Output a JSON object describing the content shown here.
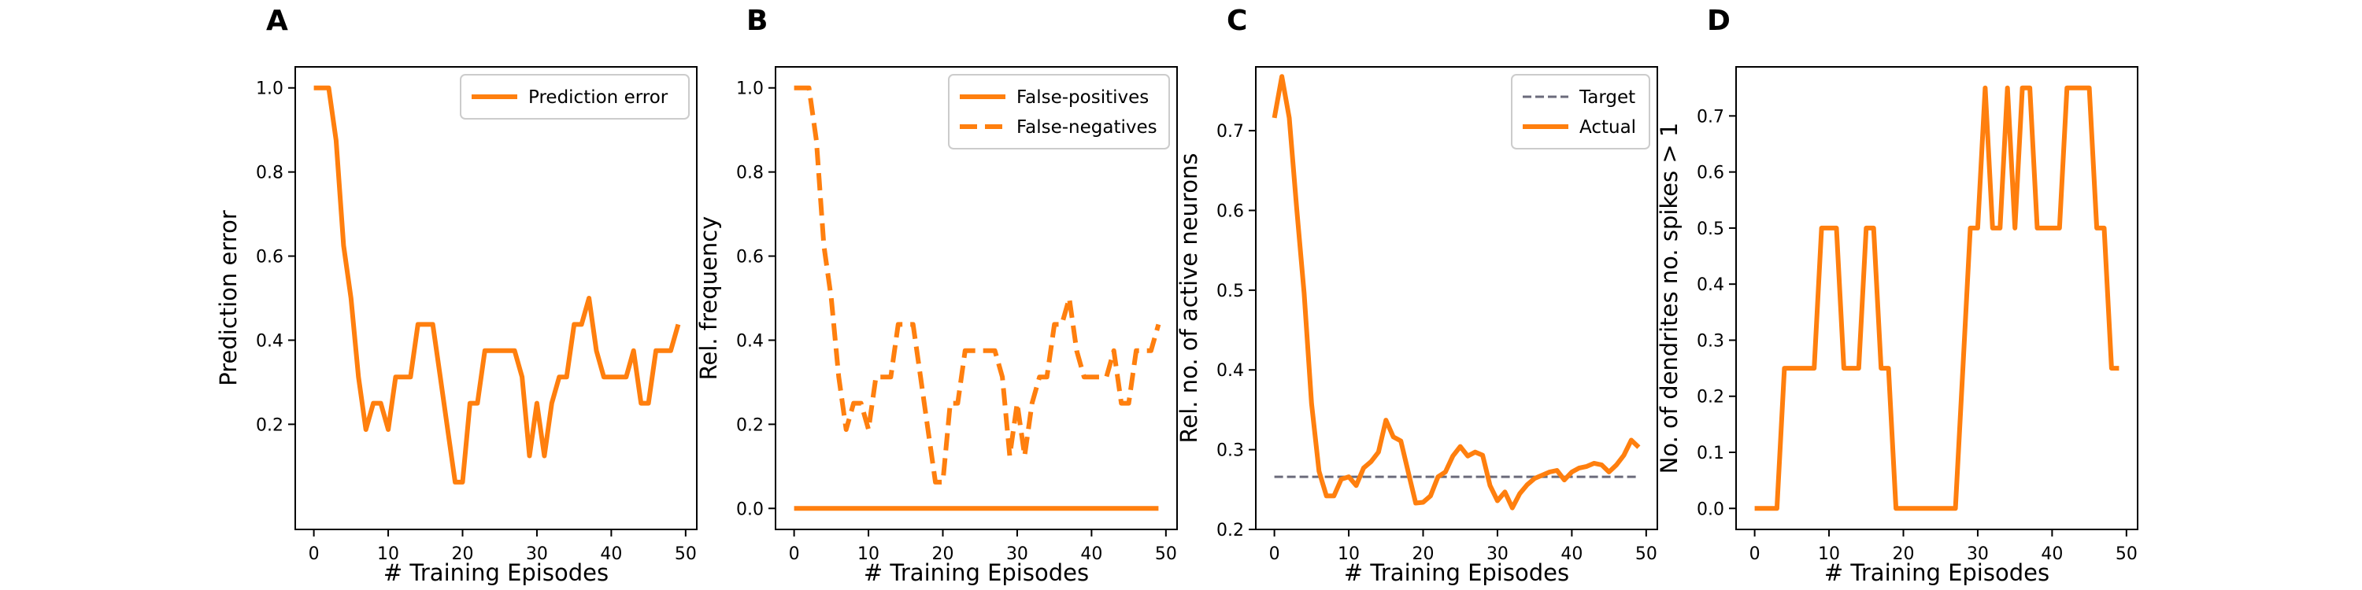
{
  "colors": {
    "orange": "#ff7f0e",
    "target_gray": "#6b6b7b",
    "axis": "#000000"
  },
  "chart_data": [
    {
      "panel_label": "A",
      "type": "line",
      "xlabel": "# Training Episodes",
      "ylabel": "Prediction error",
      "xlim": [
        -2.5,
        51.5
      ],
      "ylim": [
        -0.05,
        1.05
      ],
      "xticks": [
        0,
        10,
        20,
        30,
        40,
        50
      ],
      "yticks": [
        0.2,
        0.4,
        0.6,
        0.8,
        1.0
      ],
      "ytick_labels": [
        "0.2",
        "0.4",
        "0.6",
        "0.8",
        "1.0"
      ],
      "legend": "top-right",
      "series": [
        {
          "name": "Prediction error",
          "style": "solid",
          "x": [
            0,
            1,
            2,
            3,
            4,
            5,
            6,
            7,
            8,
            9,
            10,
            11,
            12,
            13,
            14,
            15,
            16,
            17,
            18,
            19,
            20,
            21,
            22,
            23,
            24,
            25,
            26,
            27,
            28,
            29,
            30,
            31,
            32,
            33,
            34,
            35,
            36,
            37,
            38,
            39,
            40,
            41,
            42,
            43,
            44,
            45,
            46,
            47,
            48,
            49
          ],
          "values": [
            1.0,
            1.0,
            1.0,
            0.875,
            0.625,
            0.5,
            0.3125,
            0.1875,
            0.25,
            0.25,
            0.1875,
            0.3125,
            0.3125,
            0.3125,
            0.4375,
            0.4375,
            0.4375,
            0.3125,
            0.1875,
            0.0625,
            0.0625,
            0.25,
            0.25,
            0.375,
            0.375,
            0.375,
            0.375,
            0.375,
            0.3125,
            0.125,
            0.25,
            0.125,
            0.25,
            0.3125,
            0.3125,
            0.4375,
            0.4375,
            0.5,
            0.375,
            0.3125,
            0.3125,
            0.3125,
            0.3125,
            0.375,
            0.25,
            0.25,
            0.375,
            0.375,
            0.375,
            0.4375
          ]
        }
      ]
    },
    {
      "panel_label": "B",
      "type": "line",
      "xlabel": "# Training Episodes",
      "ylabel": "Rel. frequency",
      "xlim": [
        -2.5,
        51.5
      ],
      "ylim": [
        -0.05,
        1.05
      ],
      "xticks": [
        0,
        10,
        20,
        30,
        40,
        50
      ],
      "yticks": [
        0.0,
        0.2,
        0.4,
        0.6,
        0.8,
        1.0
      ],
      "ytick_labels": [
        "0.0",
        "0.2",
        "0.4",
        "0.6",
        "0.8",
        "1.0"
      ],
      "legend": "top-right",
      "series": [
        {
          "name": "False-positives",
          "style": "solid",
          "x": [
            0,
            1,
            2,
            3,
            4,
            5,
            6,
            7,
            8,
            9,
            10,
            11,
            12,
            13,
            14,
            15,
            16,
            17,
            18,
            19,
            20,
            21,
            22,
            23,
            24,
            25,
            26,
            27,
            28,
            29,
            30,
            31,
            32,
            33,
            34,
            35,
            36,
            37,
            38,
            39,
            40,
            41,
            42,
            43,
            44,
            45,
            46,
            47,
            48,
            49
          ],
          "values": [
            0,
            0,
            0,
            0,
            0,
            0,
            0,
            0,
            0,
            0,
            0,
            0,
            0,
            0,
            0,
            0,
            0,
            0,
            0,
            0,
            0,
            0,
            0,
            0,
            0,
            0,
            0,
            0,
            0,
            0,
            0,
            0,
            0,
            0,
            0,
            0,
            0,
            0,
            0,
            0,
            0,
            0,
            0,
            0,
            0,
            0,
            0,
            0,
            0,
            0
          ]
        },
        {
          "name": "False-negatives",
          "style": "dashed",
          "x": [
            0,
            1,
            2,
            3,
            4,
            5,
            6,
            7,
            8,
            9,
            10,
            11,
            12,
            13,
            14,
            15,
            16,
            17,
            18,
            19,
            20,
            21,
            22,
            23,
            24,
            25,
            26,
            27,
            28,
            29,
            30,
            31,
            32,
            33,
            34,
            35,
            36,
            37,
            38,
            39,
            40,
            41,
            42,
            43,
            44,
            45,
            46,
            47,
            48,
            49
          ],
          "values": [
            1.0,
            1.0,
            1.0,
            0.875,
            0.625,
            0.5,
            0.3125,
            0.1875,
            0.25,
            0.25,
            0.1875,
            0.3125,
            0.3125,
            0.3125,
            0.4375,
            0.4375,
            0.4375,
            0.3125,
            0.1875,
            0.0625,
            0.0625,
            0.25,
            0.25,
            0.375,
            0.375,
            0.375,
            0.375,
            0.375,
            0.3125,
            0.125,
            0.25,
            0.125,
            0.25,
            0.3125,
            0.3125,
            0.4375,
            0.4375,
            0.5,
            0.375,
            0.3125,
            0.3125,
            0.3125,
            0.3125,
            0.375,
            0.25,
            0.25,
            0.375,
            0.375,
            0.375,
            0.4375
          ]
        }
      ]
    },
    {
      "panel_label": "C",
      "type": "line",
      "xlabel": "# Training Episodes",
      "ylabel": "Rel. no. of active neurons",
      "xlim": [
        -2.5,
        51.5
      ],
      "ylim": [
        0.2,
        0.78
      ],
      "xticks": [
        0,
        10,
        20,
        30,
        40,
        50
      ],
      "yticks": [
        0.2,
        0.3,
        0.4,
        0.5,
        0.6,
        0.7
      ],
      "ytick_labels": [
        "0.2",
        "0.3",
        "0.4",
        "0.5",
        "0.6",
        "0.7"
      ],
      "legend": "top-right",
      "series": [
        {
          "name": "Target",
          "style": "dashed-thin",
          "x": [
            0,
            49
          ],
          "values": [
            0.266,
            0.266
          ]
        },
        {
          "name": "Actual",
          "style": "solid",
          "x": [
            0,
            1,
            2,
            3,
            4,
            5,
            6,
            7,
            8,
            9,
            10,
            11,
            12,
            13,
            14,
            15,
            16,
            17,
            18,
            19,
            20,
            21,
            22,
            23,
            24,
            25,
            26,
            27,
            28,
            29,
            30,
            31,
            32,
            33,
            34,
            35,
            36,
            37,
            38,
            39,
            40,
            41,
            42,
            43,
            44,
            45,
            46,
            47,
            48,
            49
          ],
          "values": [
            0.716,
            0.768,
            0.716,
            0.603,
            0.496,
            0.358,
            0.273,
            0.242,
            0.242,
            0.263,
            0.266,
            0.255,
            0.277,
            0.285,
            0.297,
            0.337,
            0.316,
            0.311,
            0.272,
            0.233,
            0.234,
            0.242,
            0.266,
            0.272,
            0.292,
            0.304,
            0.292,
            0.297,
            0.293,
            0.255,
            0.236,
            0.247,
            0.227,
            0.245,
            0.256,
            0.264,
            0.268,
            0.272,
            0.274,
            0.262,
            0.272,
            0.277,
            0.279,
            0.283,
            0.281,
            0.272,
            0.281,
            0.293,
            0.312,
            0.303
          ]
        }
      ]
    },
    {
      "panel_label": "D",
      "type": "line",
      "xlabel": "# Training Episodes",
      "ylabel": "No. of dendrites no. spikes > 1",
      "xlim": [
        -2.5,
        51.5
      ],
      "ylim": [
        -0.0375,
        0.7875
      ],
      "xticks": [
        0,
        10,
        20,
        30,
        40,
        50
      ],
      "yticks": [
        0.0,
        0.1,
        0.2,
        0.3,
        0.4,
        0.5,
        0.6,
        0.7
      ],
      "ytick_labels": [
        "0.0",
        "0.1",
        "0.2",
        "0.3",
        "0.4",
        "0.5",
        "0.6",
        "0.7"
      ],
      "legend": "none",
      "series": [
        {
          "name": "",
          "style": "solid",
          "x": [
            0,
            1,
            2,
            3,
            4,
            5,
            6,
            7,
            8,
            9,
            10,
            11,
            12,
            13,
            14,
            15,
            16,
            17,
            18,
            19,
            20,
            21,
            22,
            23,
            24,
            25,
            26,
            27,
            28,
            29,
            30,
            31,
            32,
            33,
            34,
            35,
            36,
            37,
            38,
            39,
            40,
            41,
            42,
            43,
            44,
            45,
            46,
            47,
            48,
            49
          ],
          "values": [
            0,
            0,
            0,
            0,
            0.25,
            0.25,
            0.25,
            0.25,
            0.25,
            0.5,
            0.5,
            0.5,
            0.25,
            0.25,
            0.25,
            0.5,
            0.5,
            0.25,
            0.25,
            0,
            0,
            0,
            0,
            0,
            0,
            0,
            0,
            0,
            0.25,
            0.5,
            0.5,
            0.75,
            0.5,
            0.5,
            0.75,
            0.5,
            0.75,
            0.75,
            0.5,
            0.5,
            0.5,
            0.5,
            0.75,
            0.75,
            0.75,
            0.75,
            0.5,
            0.5,
            0.25,
            0.25
          ]
        }
      ]
    }
  ]
}
